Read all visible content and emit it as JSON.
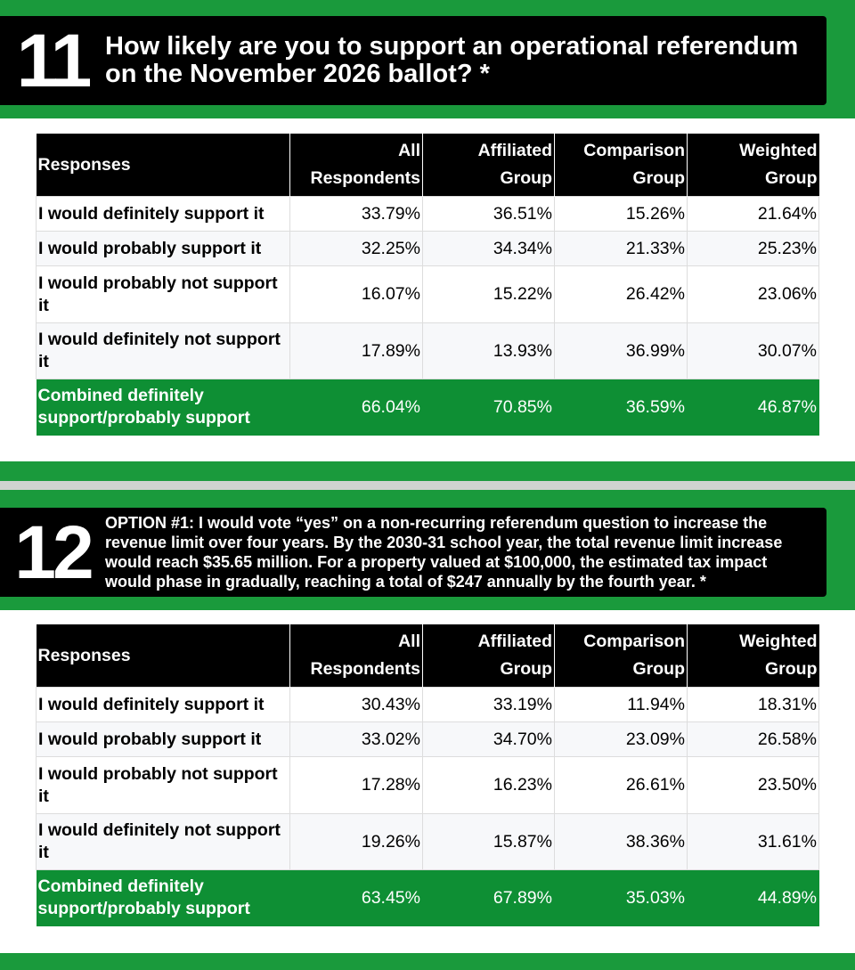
{
  "sections": [
    {
      "number": "11",
      "question": "How likely are you to support an operational referendum on the November 2026 ballot? *",
      "table": {
        "header": [
          "Responses",
          "All Respondents",
          "Affiliated Group",
          "Comparison Group",
          "Weighted Group"
        ],
        "rows": [
          [
            "I would definitely support it",
            "33.79%",
            "36.51%",
            "15.26%",
            "21.64%"
          ],
          [
            "I would probably support it",
            "32.25%",
            "34.34%",
            "21.33%",
            "25.23%"
          ],
          [
            "I would probably not support it",
            "16.07%",
            "15.22%",
            "26.42%",
            "23.06%"
          ],
          [
            "I would definitely not support it",
            "17.89%",
            "13.93%",
            "36.99%",
            "30.07%"
          ],
          [
            "Combined definitely support/probably support",
            "66.04%",
            "70.85%",
            "36.59%",
            "46.87%"
          ]
        ]
      }
    },
    {
      "number": "12",
      "question": "OPTION #1: I would vote “yes” on a non-recurring referendum question to increase the revenue limit over four years. By the 2030-31 school year, the total revenue limit increase would reach $35.65 million. For a property valued at $100,000, the estimated tax impact would phase in gradually, reaching a total of $247 annually by the fourth year. *",
      "table": {
        "header": [
          "Responses",
          "All Respondents",
          "Affiliated Group",
          "Comparison Group",
          "Weighted Group"
        ],
        "rows": [
          [
            "I would definitely support it",
            "30.43%",
            "33.19%",
            "11.94%",
            "18.31%"
          ],
          [
            "I would probably support it",
            "33.02%",
            "34.70%",
            "23.09%",
            "26.58%"
          ],
          [
            "I would probably not support it",
            "17.28%",
            "16.23%",
            "26.61%",
            "23.50%"
          ],
          [
            "I would definitely not support it",
            "19.26%",
            "15.87%",
            "38.36%",
            "31.61%"
          ],
          [
            "Combined definitely support/probably support",
            "63.45%",
            "67.89%",
            "35.03%",
            "44.89%"
          ]
        ]
      }
    }
  ]
}
